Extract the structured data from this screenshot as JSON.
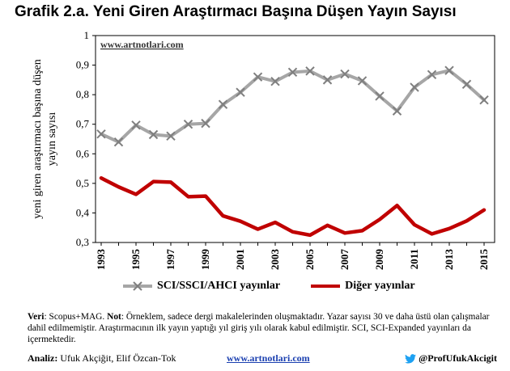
{
  "title": "Grafik 2.a. Yeni Giren Araştırmacı Başına Düşen Yayın Sayısı",
  "chart_data": {
    "type": "line",
    "x": [
      1993,
      1994,
      1995,
      1996,
      1997,
      1998,
      1999,
      2000,
      2001,
      2002,
      2003,
      2004,
      2005,
      2006,
      2007,
      2008,
      2009,
      2010,
      2011,
      2012,
      2013,
      2014,
      2015
    ],
    "x_tick_labels": [
      "1993",
      "1995",
      "1997",
      "1999",
      "2001",
      "2003",
      "2005",
      "2007",
      "2009",
      "2011",
      "2013",
      "2015"
    ],
    "y_tick_labels": [
      "0,3",
      "0,4",
      "0,5",
      "0,6",
      "0,7",
      "0,8",
      "0,9",
      "1"
    ],
    "ylim": [
      0.3,
      1.0
    ],
    "ylabel_line1": "yeni giren araştırmacı başına düşen",
    "ylabel_line2": "yayın sayısı",
    "watermark": "www.artnotlari.com",
    "grid": false,
    "legend_position": "bottom",
    "series": [
      {
        "name": "SCI/SSCI/AHCI yayınlar",
        "color": "#a6a6a6",
        "marker": "x-cross",
        "values": [
          0.667,
          0.64,
          0.697,
          0.665,
          0.66,
          0.7,
          0.703,
          0.767,
          0.808,
          0.86,
          0.845,
          0.876,
          0.88,
          0.85,
          0.87,
          0.847,
          0.795,
          0.745,
          0.825,
          0.868,
          0.882,
          0.835,
          0.782
        ]
      },
      {
        "name": "Diğer yayınlar",
        "color": "#c00000",
        "marker": "none",
        "values": [
          0.518,
          0.488,
          0.463,
          0.506,
          0.504,
          0.455,
          0.457,
          0.39,
          0.372,
          0.345,
          0.368,
          0.336,
          0.325,
          0.358,
          0.332,
          0.34,
          0.378,
          0.425,
          0.36,
          0.329,
          0.347,
          0.373,
          0.41
        ]
      }
    ]
  },
  "note": {
    "source_label": "Veri",
    "source_text": ": Scopus+MAG. ",
    "note_label": "Not",
    "note_text": ": Örneklem, sadece dergi makalelerinden oluşmaktadır. Yazar sayısı 30 ve daha üstü olan çalışmalar dahil edilmemiştir. Araştırmacının ilk yayın yaptığı yıl giriş yılı olarak kabul edilmiştir. SCI, SCI-Expanded yayınları da içermektedir."
  },
  "footer": {
    "analysis_label": "Analiz:",
    "analysts": " Ufuk Akçiğit, Elif Özcan-Tok",
    "website": "www.artnotlari.com",
    "twitter": "@ProfUfukAkcigit",
    "twitter_icon": "twitter-bird-icon"
  }
}
